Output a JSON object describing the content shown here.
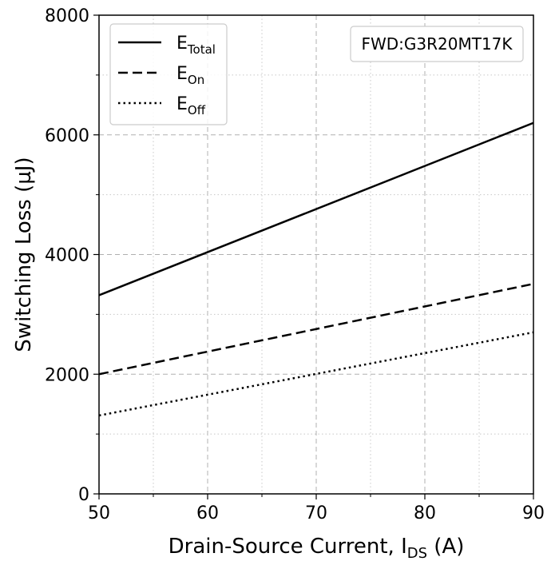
{
  "chart_data": {
    "type": "line",
    "xlabel": "Drain-Source Current, I",
    "xlabel_sub": "DS",
    "xlabel_suffix": " (A)",
    "ylabel": "Switching Loss (µJ)",
    "xlim": [
      50,
      90
    ],
    "ylim": [
      0,
      8000
    ],
    "x_ticks": [
      50,
      60,
      70,
      80,
      90
    ],
    "y_ticks": [
      0,
      2000,
      4000,
      6000,
      8000
    ],
    "x_tick_labels": [
      "50",
      "60",
      "70",
      "80",
      "90"
    ],
    "y_tick_labels": [
      "0",
      "2000",
      "4000",
      "6000",
      "8000"
    ],
    "grid": true,
    "legend_position": "top-left",
    "annotation": "FWD:G3R20MT17K",
    "series": [
      {
        "name": "E",
        "name_sub": "Total",
        "style": "solid",
        "x": [
          50,
          90
        ],
        "y": [
          3320,
          6200
        ]
      },
      {
        "name": "E",
        "name_sub": "On",
        "style": "dashed",
        "x": [
          50,
          90
        ],
        "y": [
          2000,
          3510
        ]
      },
      {
        "name": "E",
        "name_sub": "Off",
        "style": "dotted",
        "x": [
          50,
          90
        ],
        "y": [
          1310,
          2700
        ]
      }
    ]
  }
}
